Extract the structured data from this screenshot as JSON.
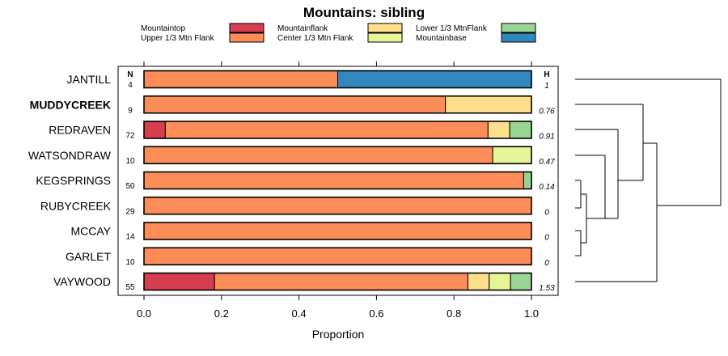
{
  "chart_data": {
    "type": "bar",
    "stacked": true,
    "orientation": "horizontal",
    "title": "Mountains: sibling",
    "xlabel": "Proportion",
    "ylabel": "",
    "xlim": [
      0,
      1
    ],
    "xticks": [
      "0.0",
      "0.2",
      "0.4",
      "0.6",
      "0.8",
      "1.0"
    ],
    "n_header": "N",
    "h_header": "H",
    "legend": [
      {
        "name": "Mountaintop",
        "color": "#d53e4f"
      },
      {
        "name": "Upper 1/3 Mtn Flank",
        "color": "#fc8d59"
      },
      {
        "name": "Mountainflank",
        "color": "#fee08b"
      },
      {
        "name": "Center 1/3 Mtn Flank",
        "color": "#e6f598"
      },
      {
        "name": "Lower 1/3 MtnFlank",
        "color": "#99d594"
      },
      {
        "name": "Mountainbase",
        "color": "#3288bd"
      }
    ],
    "categories": [
      "JANTILL",
      "MUDDYCREEK",
      "REDRAVEN",
      "WATSONDRAW",
      "KEGSPRINGS",
      "RUBYCREEK",
      "MCCAY",
      "GARLET",
      "VAYWOOD"
    ],
    "highlighted": "MUDDYCREEK",
    "n": [
      "4",
      "9",
      "72",
      "10",
      "50",
      "29",
      "14",
      "10",
      "55"
    ],
    "h": [
      "1",
      "0.76",
      "0.91",
      "0.47",
      "0.14",
      "0",
      "0",
      "0",
      "1.53"
    ],
    "series": [
      {
        "name": "Mountaintop",
        "values": [
          0,
          0,
          0.055,
          0,
          0,
          0,
          0,
          0,
          0.182
        ]
      },
      {
        "name": "Upper 1/3 Mtn Flank",
        "values": [
          0.5,
          0.778,
          0.833,
          0.9,
          0.98,
          1,
          1,
          1,
          0.654
        ]
      },
      {
        "name": "Mountainflank",
        "values": [
          0,
          0.222,
          0.056,
          0,
          0,
          0,
          0,
          0,
          0.055
        ]
      },
      {
        "name": "Center 1/3 Mtn Flank",
        "values": [
          0,
          0,
          0,
          0.1,
          0,
          0,
          0,
          0,
          0.055
        ]
      },
      {
        "name": "Lower 1/3 MtnFlank",
        "values": [
          0,
          0,
          0.056,
          0,
          0.02,
          0,
          0,
          0,
          0.054
        ]
      },
      {
        "name": "Mountainbase",
        "values": [
          0.5,
          0,
          0,
          0,
          0,
          0,
          0,
          0,
          0
        ]
      }
    ]
  }
}
